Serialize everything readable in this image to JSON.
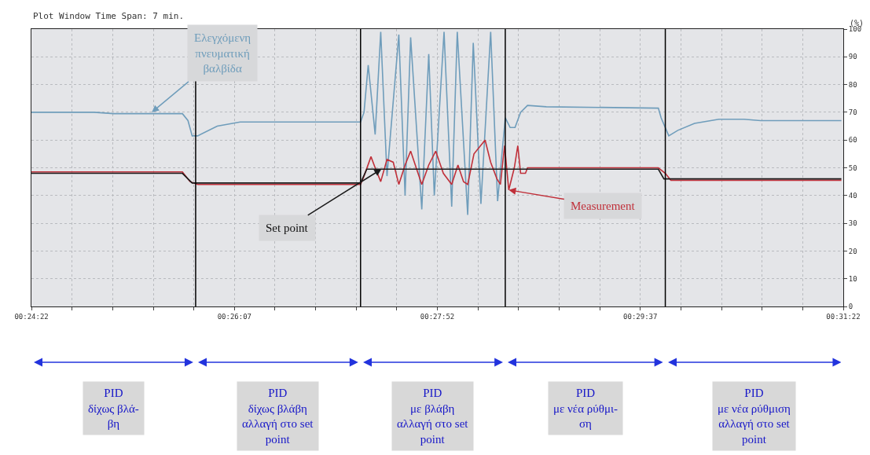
{
  "chart_data": {
    "type": "line",
    "ylabel": "(%)",
    "annotations": [
      "Plot Window Time Span: 7 min.",
      {
        "text": "Ελεγχόμενη\nπνευματική\nβαλβίδα",
        "x": 0.4234,
        "y": 70
      },
      {
        "text": "Set point",
        "x": 0.4564,
        "y": 49.5
      },
      {
        "text": "Measurement",
        "x": 0.4747,
        "y": 42
      },
      "PID\nδίχως βλά-\nβη",
      "PID\nδίχως βλάβη\nαλλαγή στο set\npoint",
      "PID\nμε βλάβη\nαλλαγή στο set\npoint",
      "PID\nμε νέα ρύθμι-\nση",
      "PID\nμε νέα ρύθμιση\nαλλαγή στο set\npoint"
    ],
    "series": [
      {
        "color": "#6f9dbb",
        "x": [
          0.4061,
          0.4151,
          0.4179,
          0.4278,
          0.4286,
          0.4292,
          0.43,
          0.4328,
          0.4361,
          0.4534,
          0.4539,
          0.4545,
          0.4555,
          0.4563,
          0.4572,
          0.4589,
          0.4598,
          0.4606,
          0.4622,
          0.4632,
          0.464,
          0.4654,
          0.4665,
          0.4673,
          0.4688,
          0.4696,
          0.4707,
          0.4721,
          0.4731,
          0.4742,
          0.4749,
          0.4756,
          0.4764,
          0.4774,
          0.4801,
          0.4962,
          0.4966,
          0.4977,
          0.499,
          0.5014,
          0.5049,
          0.5085,
          0.5109,
          0.5225
        ],
        "values": [
          70,
          70,
          69.5,
          69.5,
          67,
          61.5,
          61.5,
          65,
          66.5,
          66.5,
          70,
          87,
          62,
          99,
          47,
          98,
          40,
          97,
          35,
          91,
          40,
          99,
          36,
          99,
          33,
          95,
          37,
          99,
          38,
          68,
          64.5,
          64.5,
          70,
          72.5,
          72,
          71.5,
          68,
          61.5,
          63.5,
          66,
          67.5,
          67.5,
          67,
          67
        ]
      },
      {
        "color": "#c0303a",
        "x": [
          0.4061,
          0.4278,
          0.4289,
          0.43,
          0.4534,
          0.4539,
          0.4549,
          0.4555,
          0.4563,
          0.4572,
          0.4581,
          0.4589,
          0.4598,
          0.4606,
          0.4614,
          0.4622,
          0.4632,
          0.4642,
          0.4653,
          0.4665,
          0.4674,
          0.4682,
          0.4688,
          0.4697,
          0.4713,
          0.4721,
          0.473,
          0.4735,
          0.4741,
          0.4747,
          0.4755,
          0.476,
          0.4764,
          0.4771,
          0.4774,
          0.4962,
          0.4972,
          0.498,
          0.5225
        ],
        "values": [
          48.5,
          48.5,
          45,
          44,
          44,
          47,
          54,
          50,
          45,
          53,
          52,
          44,
          51,
          56,
          50,
          44,
          51,
          56,
          48,
          44,
          51,
          45,
          44,
          55,
          60,
          52,
          46,
          44,
          58,
          42,
          50,
          58,
          48,
          48,
          50,
          50,
          48,
          45.5,
          45.5
        ]
      },
      {
        "color": "#1a1a1a",
        "x": [
          0.4061,
          0.4278,
          0.4292,
          0.4534,
          0.4543,
          0.4962,
          0.497,
          0.5225
        ],
        "values": [
          48,
          48,
          44.5,
          44.5,
          49.5,
          49.5,
          46,
          46
        ]
      }
    ],
    "xlim": [
      0.4061,
      0.522778
    ],
    "xticks": [
      {
        "value": 0.406111,
        "label": "00:24:22"
      },
      {
        "value": 0.411944,
        "label": null
      },
      {
        "value": 0.417778,
        "label": null
      },
      {
        "value": 0.423611,
        "label": null
      },
      {
        "value": 0.429444,
        "label": null
      },
      {
        "value": 0.435278,
        "label": "00:26:07"
      },
      {
        "value": 0.441111,
        "label": null
      },
      {
        "value": 0.446944,
        "label": null
      },
      {
        "value": 0.452778,
        "label": null
      },
      {
        "value": 0.458611,
        "label": null
      },
      {
        "value": 0.464444,
        "label": "00:27:52"
      },
      {
        "value": 0.470278,
        "label": null
      },
      {
        "value": 0.476111,
        "label": null
      },
      {
        "value": 0.481944,
        "label": null
      },
      {
        "value": 0.487778,
        "label": null
      },
      {
        "value": 0.493611,
        "label": "00:29:37"
      },
      {
        "value": 0.499444,
        "label": null
      },
      {
        "value": 0.505278,
        "label": null
      },
      {
        "value": 0.511111,
        "label": null
      },
      {
        "value": 0.516944,
        "label": null
      },
      {
        "value": 0.522778,
        "label": "00:31:22"
      }
    ],
    "ylim": [
      0,
      100
    ],
    "yticks": [
      0,
      10,
      20,
      30,
      40,
      50,
      60,
      70,
      80,
      90,
      100
    ],
    "ref_lines": [
      {
        "axis": "x",
        "value": 0.4297,
        "color": "#000000"
      },
      {
        "axis": "x",
        "value": 0.4534,
        "color": "#000000"
      },
      {
        "axis": "x",
        "value": 0.4742,
        "color": "#000000"
      },
      {
        "axis": "x",
        "value": 0.4972,
        "color": "#000000"
      }
    ],
    "grid": true,
    "marker": "none",
    "line_style": "solid"
  }
}
